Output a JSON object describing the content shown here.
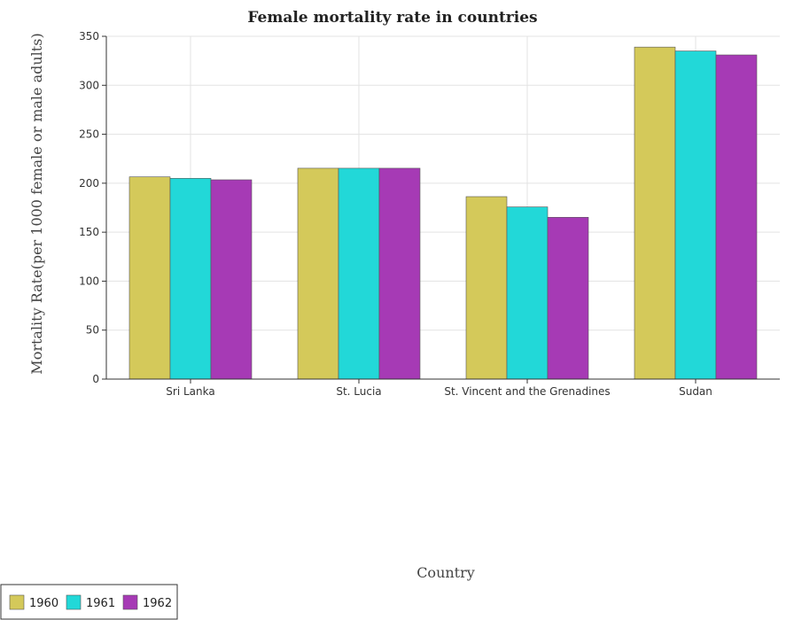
{
  "chart_data": {
    "type": "bar",
    "title": "Female mortality rate in countries",
    "xlabel": "Country",
    "ylabel": "Mortality Rate(per 1000 female or male adults)",
    "categories": [
      "Sri Lanka",
      "St. Lucia",
      "St. Vincent and the Grenadines",
      "Sudan"
    ],
    "series": [
      {
        "name": "1960",
        "color": "#d4c95a",
        "values": [
          206.5,
          215.3,
          186.3,
          339.0
        ]
      },
      {
        "name": "1961",
        "color": "#22d8d8",
        "values": [
          205.0,
          215.3,
          175.8,
          335.0
        ]
      },
      {
        "name": "1962",
        "color": "#a63ab5",
        "values": [
          203.5,
          215.3,
          165.2,
          331.0
        ]
      }
    ],
    "ylim": [
      0,
      350
    ],
    "yticks": [
      0,
      50,
      100,
      150,
      200,
      250,
      300,
      350
    ],
    "grid": true,
    "legend_position": "bottom-left"
  }
}
